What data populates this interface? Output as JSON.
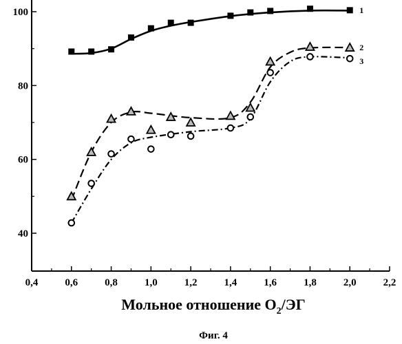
{
  "chart_data": {
    "type": "line",
    "title": "",
    "xlabel_main": "Мольное отношение O",
    "xlabel_sub": "2",
    "xlabel_tail": "/ЭГ",
    "ylabel": "",
    "xlim": [
      0.4,
      2.2
    ],
    "ylim": [
      30,
      100
    ],
    "x_ticks": [
      "0,4",
      "0,6",
      "0,8",
      "1,0",
      "1,2",
      "1,4",
      "1,6",
      "1,8",
      "2,0",
      "2,2"
    ],
    "y_ticks": [
      "40",
      "60",
      "80",
      "100"
    ],
    "grid": false,
    "series": [
      {
        "label": "1",
        "marker": "square",
        "line_style": "solid",
        "points": [
          [
            0.6,
            89.2
          ],
          [
            0.7,
            89.2
          ],
          [
            0.8,
            89.8
          ],
          [
            0.9,
            93.0
          ],
          [
            1.0,
            95.5
          ],
          [
            1.1,
            97.0
          ],
          [
            1.2,
            97.0
          ],
          [
            1.4,
            98.9
          ],
          [
            1.5,
            99.8
          ],
          [
            1.6,
            100.2
          ],
          [
            1.8,
            100.8
          ],
          [
            2.0,
            100.4
          ]
        ],
        "curve": [
          [
            0.6,
            88.6
          ],
          [
            0.7,
            88.8
          ],
          [
            0.8,
            90.0
          ],
          [
            0.9,
            92.6
          ],
          [
            1.0,
            94.8
          ],
          [
            1.1,
            96.2
          ],
          [
            1.2,
            97.2
          ],
          [
            1.4,
            98.8
          ],
          [
            1.6,
            99.8
          ],
          [
            1.8,
            100.3
          ],
          [
            2.0,
            100.3
          ]
        ]
      },
      {
        "label": "2",
        "marker": "triangle",
        "line_style": "dashed",
        "points": [
          [
            0.6,
            50.0
          ],
          [
            0.7,
            62.0
          ],
          [
            0.8,
            71.0
          ],
          [
            0.9,
            73.0
          ],
          [
            1.0,
            68.0
          ],
          [
            1.1,
            71.5
          ],
          [
            1.2,
            70.0
          ],
          [
            1.4,
            71.8
          ],
          [
            1.5,
            74.0
          ],
          [
            1.6,
            86.5
          ],
          [
            1.8,
            90.5
          ],
          [
            2.0,
            90.3
          ]
        ],
        "curve": [
          [
            0.6,
            49.0
          ],
          [
            0.7,
            62.0
          ],
          [
            0.8,
            70.0
          ],
          [
            0.9,
            72.8
          ],
          [
            1.0,
            72.5
          ],
          [
            1.2,
            71.3
          ],
          [
            1.4,
            71.3
          ],
          [
            1.5,
            75.5
          ],
          [
            1.6,
            85.0
          ],
          [
            1.7,
            89.0
          ],
          [
            1.8,
            90.2
          ],
          [
            2.0,
            90.3
          ]
        ]
      },
      {
        "label": "3",
        "marker": "circle",
        "line_style": "dash-dot",
        "points": [
          [
            0.6,
            42.8
          ],
          [
            0.7,
            53.5
          ],
          [
            0.8,
            61.5
          ],
          [
            0.9,
            65.5
          ],
          [
            1.0,
            62.8
          ],
          [
            1.1,
            66.7
          ],
          [
            1.2,
            66.3
          ],
          [
            1.4,
            68.5
          ],
          [
            1.5,
            71.5
          ],
          [
            1.6,
            83.5
          ],
          [
            1.8,
            87.8
          ],
          [
            2.0,
            87.3
          ]
        ],
        "curve": [
          [
            0.6,
            42.8
          ],
          [
            0.7,
            52.0
          ],
          [
            0.8,
            60.0
          ],
          [
            0.9,
            64.5
          ],
          [
            1.0,
            66.0
          ],
          [
            1.2,
            67.5
          ],
          [
            1.4,
            68.5
          ],
          [
            1.5,
            71.0
          ],
          [
            1.6,
            81.0
          ],
          [
            1.7,
            86.5
          ],
          [
            1.8,
            87.8
          ],
          [
            2.0,
            87.5
          ]
        ]
      }
    ]
  },
  "caption": "Фиг. 4"
}
